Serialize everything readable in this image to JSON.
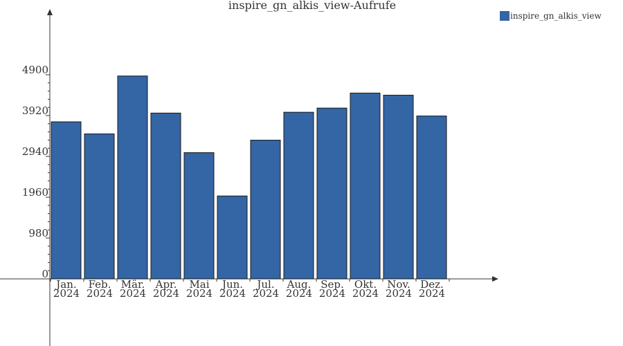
{
  "chart_data": {
    "type": "bar",
    "title": "inspire_gn_alkis_view-Aufrufe",
    "categories": [
      [
        "Jan.",
        "2024"
      ],
      [
        "Feb.",
        "2024"
      ],
      [
        "Mär.",
        "2024"
      ],
      [
        "Apr.",
        "2024"
      ],
      [
        "Mai",
        "2024"
      ],
      [
        "Jun.",
        "2024"
      ],
      [
        "Jul.",
        "2024"
      ],
      [
        "Aug.",
        "2024"
      ],
      [
        "Sep.",
        "2024"
      ],
      [
        "Okt.",
        "2024"
      ],
      [
        "Nov.",
        "2024"
      ],
      [
        "Dez.",
        "2024"
      ]
    ],
    "series": [
      {
        "name": "inspire_gn_alkis_view",
        "color": "#3465a4",
        "values": [
          3770,
          3480,
          4870,
          3980,
          3030,
          1990,
          3330,
          4000,
          4100,
          4460,
          4410,
          3910
        ]
      }
    ],
    "y_ticks": [
      "0",
      "980",
      "1960",
      "2940",
      "3920",
      "4900"
    ],
    "y_tick_values": [
      0,
      980,
      1960,
      2940,
      3920,
      4900
    ],
    "ylim": [
      0,
      4900
    ],
    "legend_position": "top-right",
    "grid": false
  }
}
